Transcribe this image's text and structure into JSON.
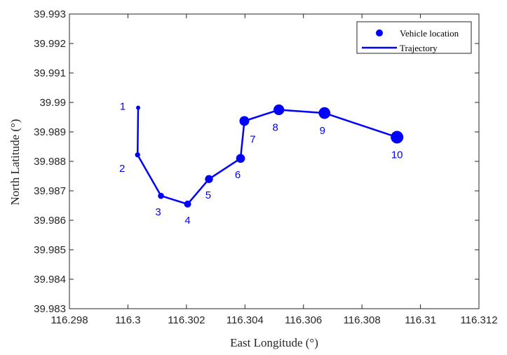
{
  "chart_data": {
    "type": "line",
    "xlabel": "East Longitude (°)",
    "ylabel": "North Latitude (°)",
    "xlim": [
      116.298,
      116.312
    ],
    "ylim": [
      39.983,
      39.993
    ],
    "x_ticks": [
      "116.298",
      "116.3",
      "116.302",
      "116.304",
      "116.306",
      "116.308",
      "116.31",
      "116.312"
    ],
    "y_ticks": [
      "39.983",
      "39.984",
      "39.985",
      "39.986",
      "39.987",
      "39.988",
      "39.989",
      "39.99",
      "39.991",
      "39.992",
      "39.993"
    ],
    "grid": false,
    "legend_position": "top-right",
    "colors": {
      "series": "#0000ff",
      "axis": "#262626"
    },
    "series": [
      {
        "name": "Vehicle location",
        "marker": "filled-circle",
        "marker_size_increases_with_index": true
      },
      {
        "name": "Trajectory",
        "style": "line"
      }
    ],
    "points": [
      {
        "label": "1",
        "x": 116.30035,
        "y": 39.98982
      },
      {
        "label": "2",
        "x": 116.30033,
        "y": 39.98822
      },
      {
        "label": "3",
        "x": 116.30113,
        "y": 39.98683
      },
      {
        "label": "4",
        "x": 116.30204,
        "y": 39.98655
      },
      {
        "label": "5",
        "x": 116.30277,
        "y": 39.9874
      },
      {
        "label": "6",
        "x": 116.30385,
        "y": 39.9881
      },
      {
        "label": "7",
        "x": 116.30398,
        "y": 39.98937
      },
      {
        "label": "8",
        "x": 116.30516,
        "y": 39.98975
      },
      {
        "label": "9",
        "x": 116.30672,
        "y": 39.98964
      },
      {
        "label": "10",
        "x": 116.3092,
        "y": 39.98882
      }
    ]
  }
}
